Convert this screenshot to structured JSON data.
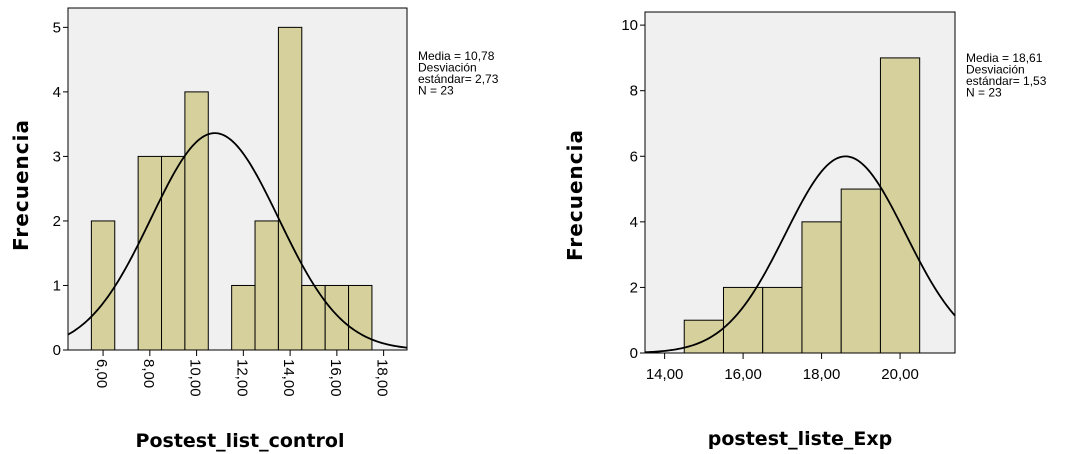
{
  "chart_data": [
    {
      "type": "bar",
      "ylabel": "Frecuencia",
      "xlabel": "Postest_list_control",
      "xlim": [
        4.5,
        19
      ],
      "ylim": [
        0,
        5.3
      ],
      "yticks": [
        0,
        1,
        2,
        3,
        4,
        5
      ],
      "ytick_labels": [
        "0",
        "1",
        "2",
        "3",
        "4",
        "5"
      ],
      "xticks": [
        6,
        8,
        10,
        12,
        14,
        16,
        18
      ],
      "xtick_labels": [
        "6,00",
        "8,00",
        "10,00",
        "12,00",
        "14,00",
        "16,00",
        "18,00"
      ],
      "xtick_rotated": true,
      "bins": [
        {
          "from": 5.5,
          "to": 6.5,
          "count": 2
        },
        {
          "from": 6.5,
          "to": 7.5,
          "count": 0
        },
        {
          "from": 7.5,
          "to": 8.5,
          "count": 3
        },
        {
          "from": 8.5,
          "to": 9.5,
          "count": 3
        },
        {
          "from": 9.5,
          "to": 10.5,
          "count": 4
        },
        {
          "from": 10.5,
          "to": 11.5,
          "count": 0
        },
        {
          "from": 11.5,
          "to": 12.5,
          "count": 1
        },
        {
          "from": 12.5,
          "to": 13.5,
          "count": 2
        },
        {
          "from": 13.5,
          "to": 14.5,
          "count": 5
        },
        {
          "from": 14.5,
          "to": 15.5,
          "count": 1
        },
        {
          "from": 15.5,
          "to": 16.5,
          "count": 1
        },
        {
          "from": 16.5,
          "to": 17.5,
          "count": 1
        }
      ],
      "normal_curve": {
        "mean": 10.78,
        "sd": 2.73,
        "n": 23,
        "bin_width": 1
      },
      "stats_text": [
        "Media = 10,78",
        "Desviación",
        "estándar= 2,73",
        "N = 23"
      ],
      "grid": false,
      "bar_color": "#d6d09c",
      "plot_background": "#f0f0f0"
    },
    {
      "type": "bar",
      "ylabel": "Frecuencia",
      "xlabel": "postest_liste_Exp",
      "xlim": [
        13.5,
        21.4
      ],
      "ylim": [
        0,
        10.4
      ],
      "yticks": [
        0,
        2,
        4,
        6,
        8,
        10
      ],
      "ytick_labels": [
        "0",
        "2",
        "4",
        "6",
        "8",
        "10"
      ],
      "xticks": [
        14,
        16,
        18,
        20
      ],
      "xtick_labels": [
        "14,00",
        "16,00",
        "18,00",
        "20,00"
      ],
      "xtick_rotated": false,
      "bins": [
        {
          "from": 14.5,
          "to": 15.5,
          "count": 1
        },
        {
          "from": 15.5,
          "to": 16.5,
          "count": 2
        },
        {
          "from": 16.5,
          "to": 17.5,
          "count": 2
        },
        {
          "from": 17.5,
          "to": 18.5,
          "count": 4
        },
        {
          "from": 18.5,
          "to": 19.5,
          "count": 5
        },
        {
          "from": 19.5,
          "to": 20.5,
          "count": 9
        }
      ],
      "normal_curve": {
        "mean": 18.61,
        "sd": 1.53,
        "n": 23,
        "bin_width": 1
      },
      "stats_text": [
        "Media = 18,61",
        "Desviación",
        "estándar= 1,53",
        "N = 23"
      ],
      "grid": false,
      "bar_color": "#d6d09c",
      "plot_background": "#f0f0f0"
    }
  ]
}
